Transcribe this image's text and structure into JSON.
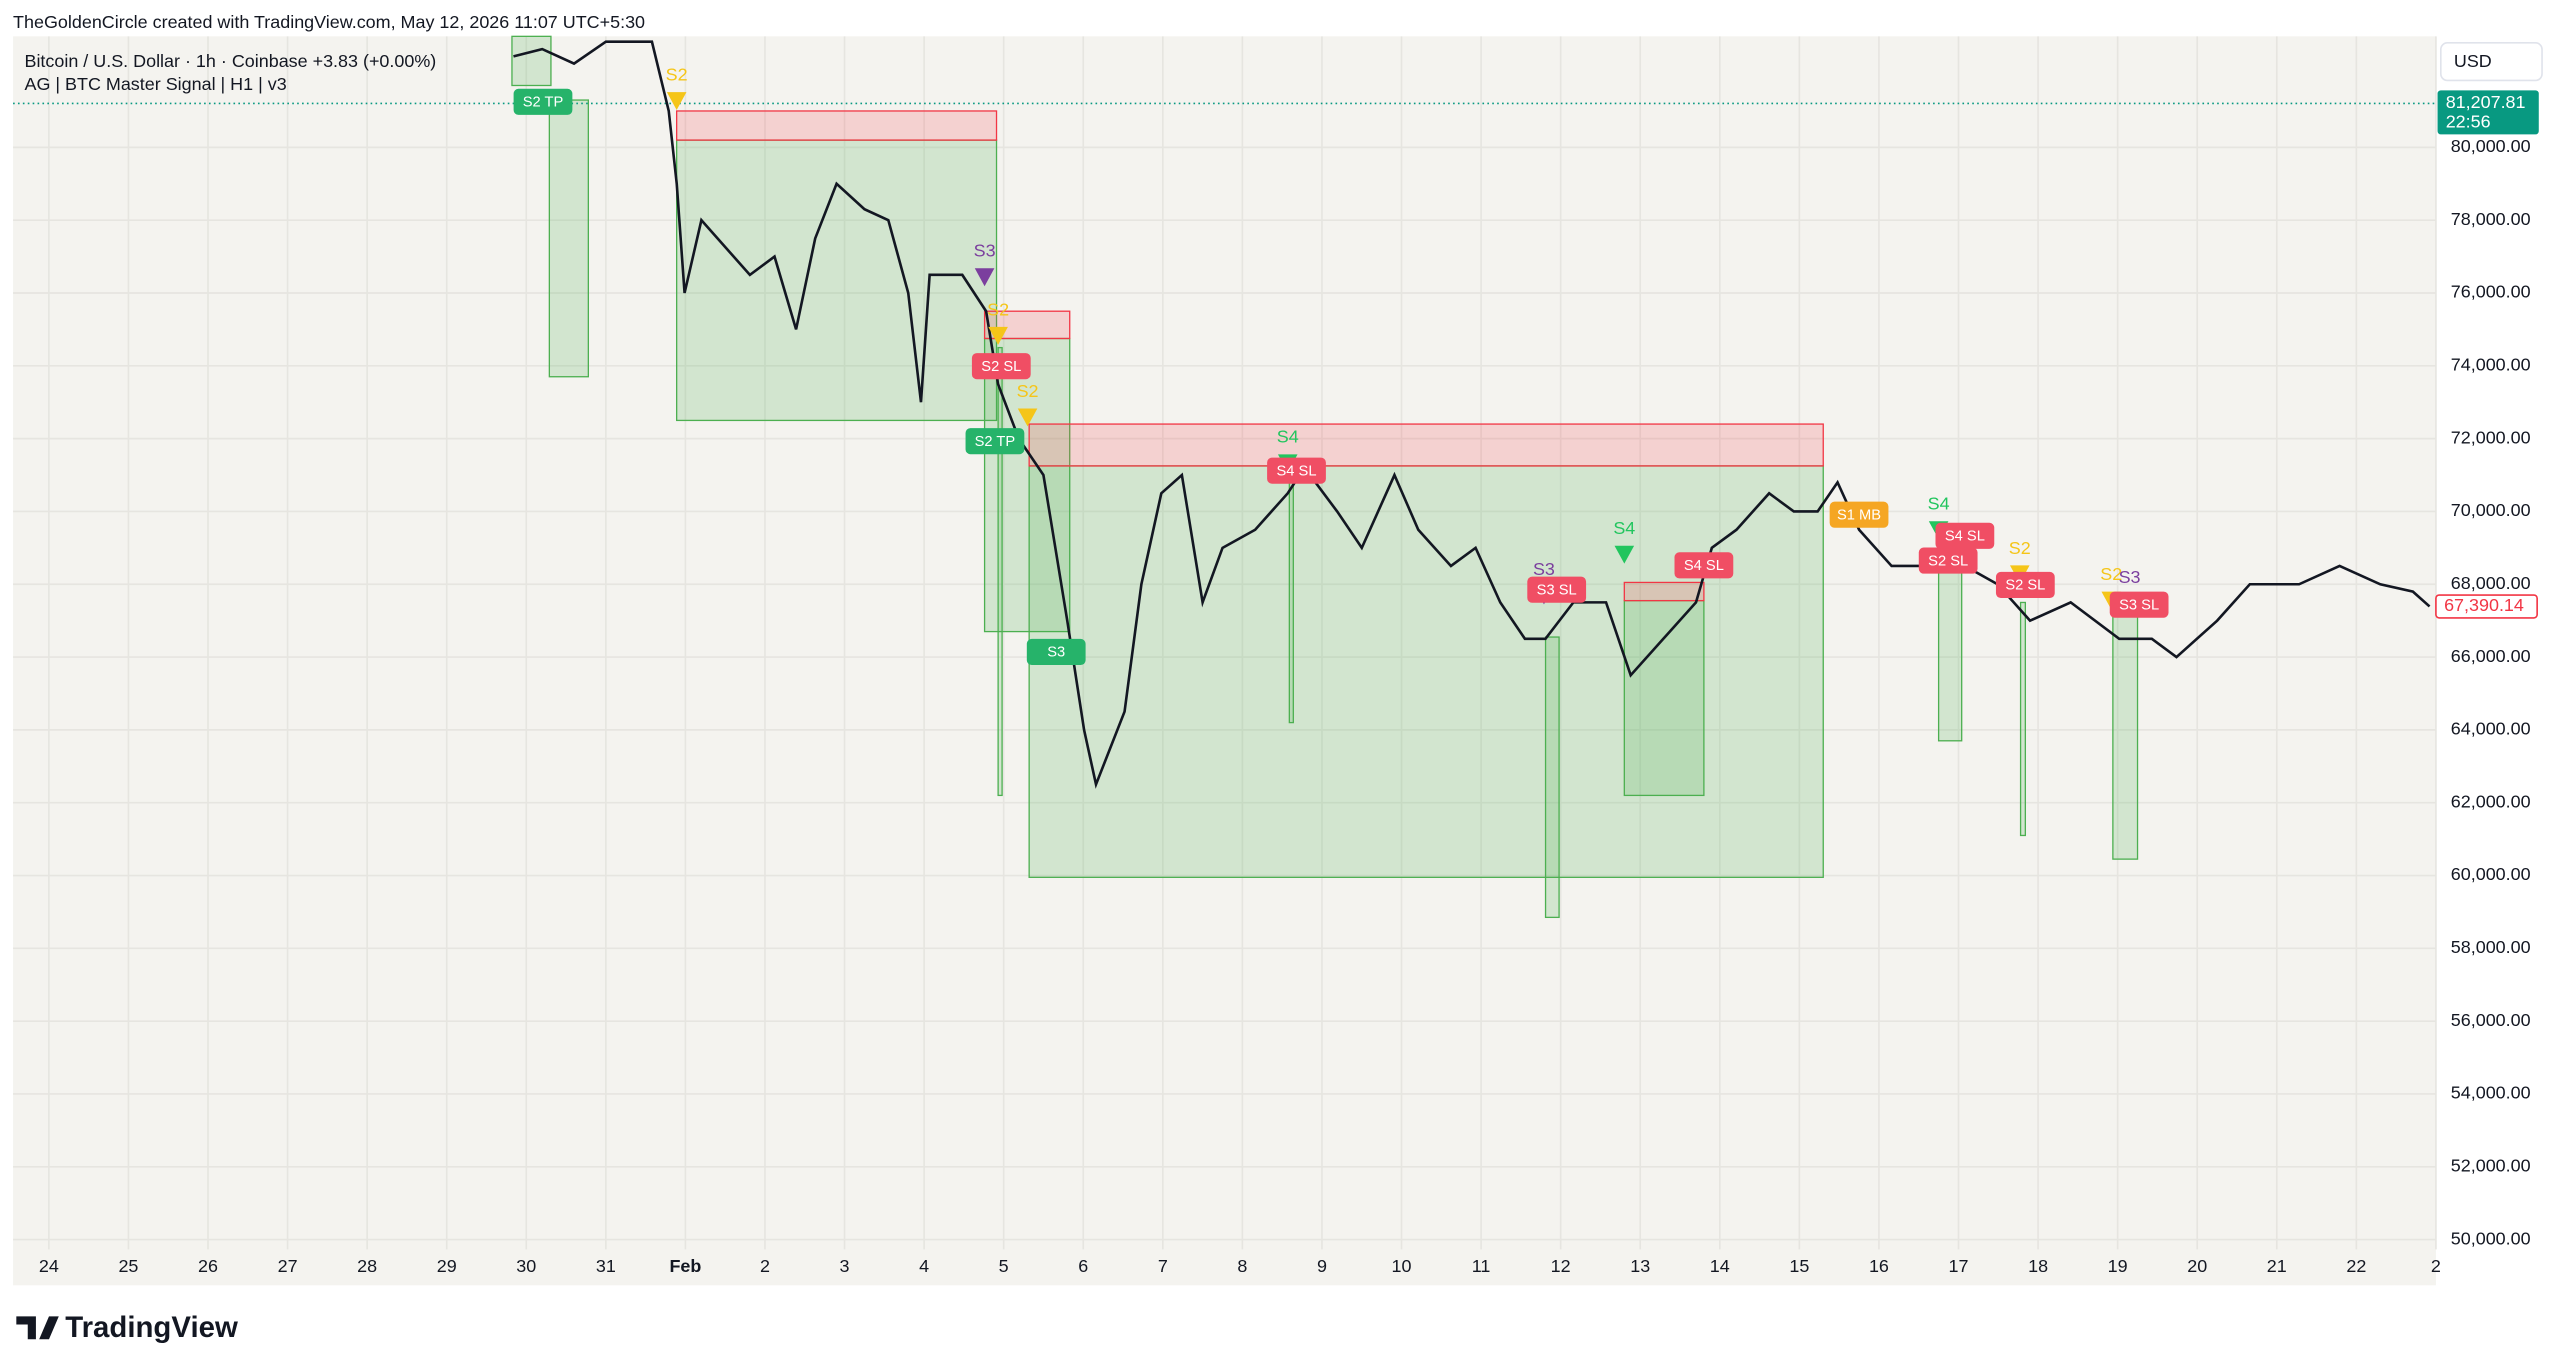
{
  "header": {
    "credit": "TheGoldenCircle created with TradingView.com, May 12, 2026 11:07 UTC+5:30",
    "symbol": "Bitcoin / U.S. Dollar · 1h · Coinbase  +3.83 (+0.00%)",
    "indicator": "AG | BTC Master Signal | H1 | v3",
    "currency": "USD"
  },
  "footer": {
    "logo": "TradingView"
  },
  "chart_data": {
    "type": "line",
    "x": [
      5.84,
      6.2,
      6.6,
      7.0,
      7.58,
      7.79,
      7.89,
      7.99,
      8.2,
      8.81,
      9.12,
      9.39,
      9.63,
      9.9,
      10.25,
      10.55,
      10.8,
      10.96,
      11.07,
      11.48,
      11.78,
      11.93,
      12.19,
      12.5,
      12.8,
      13.01,
      13.16,
      13.52,
      13.73,
      13.98,
      14.24,
      14.5,
      14.75,
      15.16,
      15.57,
      15.78,
      16.19,
      16.5,
      16.91,
      17.21,
      17.62,
      17.93,
      18.24,
      18.55,
      18.81,
      19.16,
      19.57,
      19.88,
      20.29,
      20.7,
      20.9,
      21.21,
      21.62,
      21.93,
      22.23,
      22.48,
      22.75,
      23.16,
      23.67,
      24.08,
      24.49,
      24.9,
      25.41,
      26.02,
      26.43,
      26.74,
      27.25,
      27.66,
      28.28,
      28.79,
      29.3,
      29.71,
      29.92
    ],
    "series": [
      {
        "name": "BTCUSD",
        "color": "#131722",
        "values": [
          82500,
          82700,
          82300,
          82900,
          82900,
          81000,
          79000,
          76000,
          78000,
          76500,
          77000,
          75000,
          77500,
          79000,
          78300,
          78000,
          76000,
          73000,
          76500,
          76500,
          75500,
          73500,
          72000,
          71000,
          67000,
          64000,
          62500,
          64500,
          68000,
          70500,
          71000,
          67500,
          69000,
          69500,
          70500,
          71200,
          70000,
          69000,
          71000,
          69500,
          68500,
          69000,
          67500,
          66500,
          66500,
          67500,
          67500,
          65500,
          66500,
          67500,
          69000,
          69500,
          70500,
          70000,
          70000,
          70800,
          69500,
          68500,
          68500,
          68500,
          68000,
          67000,
          67500,
          66500,
          66500,
          66000,
          67000,
          68000,
          68000,
          68500,
          68000,
          67800,
          67390.14
        ]
      }
    ],
    "xlim": [
      -0.45,
      30
    ],
    "ylim": [
      49730,
      83050
    ],
    "xticks": [
      {
        "value": 0,
        "label": "24"
      },
      {
        "value": 1,
        "label": "25"
      },
      {
        "value": 2,
        "label": "26"
      },
      {
        "value": 3,
        "label": "27"
      },
      {
        "value": 4,
        "label": "28"
      },
      {
        "value": 5,
        "label": "29"
      },
      {
        "value": 6,
        "label": "30"
      },
      {
        "value": 7,
        "label": "31"
      },
      {
        "value": 8,
        "label": "Feb"
      },
      {
        "value": 9,
        "label": "2"
      },
      {
        "value": 10,
        "label": "3"
      },
      {
        "value": 11,
        "label": "4"
      },
      {
        "value": 12,
        "label": "5"
      },
      {
        "value": 13,
        "label": "6"
      },
      {
        "value": 14,
        "label": "7"
      },
      {
        "value": 15,
        "label": "8"
      },
      {
        "value": 16,
        "label": "9"
      },
      {
        "value": 17,
        "label": "10"
      },
      {
        "value": 18,
        "label": "11"
      },
      {
        "value": 19,
        "label": "12"
      },
      {
        "value": 20,
        "label": "13"
      },
      {
        "value": 21,
        "label": "14"
      },
      {
        "value": 22,
        "label": "15"
      },
      {
        "value": 23,
        "label": "16"
      },
      {
        "value": 24,
        "label": "17"
      },
      {
        "value": 25,
        "label": "18"
      },
      {
        "value": 26,
        "label": "19"
      },
      {
        "value": 27,
        "label": "20"
      },
      {
        "value": 28,
        "label": "21"
      },
      {
        "value": 29,
        "label": "22"
      },
      {
        "value": 30,
        "label": "2"
      }
    ],
    "yticks": [
      {
        "value": 50000,
        "label": "50,000.00"
      },
      {
        "value": 52000,
        "label": "52,000.00"
      },
      {
        "value": 54000,
        "label": "54,000.00"
      },
      {
        "value": 56000,
        "label": "56,000.00"
      },
      {
        "value": 58000,
        "label": "58,000.00"
      },
      {
        "value": 60000,
        "label": "60,000.00"
      },
      {
        "value": 62000,
        "label": "62,000.00"
      },
      {
        "value": 64000,
        "label": "64,000.00"
      },
      {
        "value": 66000,
        "label": "66,000.00"
      },
      {
        "value": 68000,
        "label": "68,000.00"
      },
      {
        "value": 70000,
        "label": "70,000.00"
      },
      {
        "value": 72000,
        "label": "72,000.00"
      },
      {
        "value": 74000,
        "label": "74,000.00"
      },
      {
        "value": 76000,
        "label": "76,000.00"
      },
      {
        "value": 78000,
        "label": "78,000.00"
      },
      {
        "value": 80000,
        "label": "80,000.00"
      }
    ],
    "grid": true,
    "zones": [
      {
        "kind": "profit",
        "x": [
          5.82,
          6.31
        ],
        "y": [
          83050,
          81700
        ]
      },
      {
        "kind": "profit",
        "x": [
          6.29,
          6.78
        ],
        "y": [
          81300,
          73700
        ]
      },
      {
        "kind": "profit",
        "x": [
          7.89,
          11.91
        ],
        "y": [
          80200,
          72500
        ]
      },
      {
        "kind": "profit",
        "x": [
          11.76,
          12.83
        ],
        "y": [
          74750,
          66700
        ]
      },
      {
        "kind": "profit",
        "x": [
          12.32,
          22.3
        ],
        "y": [
          71250,
          59950
        ]
      },
      {
        "kind": "profit",
        "x": [
          19.8,
          20.8
        ],
        "y": [
          67550,
          62200
        ]
      },
      {
        "kind": "profit",
        "x": [
          18.81,
          18.98
        ],
        "y": [
          66550,
          58850
        ]
      },
      {
        "kind": "profit",
        "x": [
          23.75,
          24.04
        ],
        "y": [
          69250,
          63700
        ]
      },
      {
        "kind": "profit",
        "x": [
          25.94,
          26.25
        ],
        "y": [
          67250,
          60450
        ]
      },
      {
        "kind": "profit",
        "x": [
          11.93,
          11.98
        ],
        "y": [
          74500,
          62200
        ]
      },
      {
        "kind": "profit",
        "x": [
          15.59,
          15.64
        ],
        "y": [
          71000,
          64200
        ]
      },
      {
        "kind": "profit",
        "x": [
          24.78,
          24.84
        ],
        "y": [
          67500,
          61100
        ]
      },
      {
        "kind": "risk",
        "x": [
          7.89,
          11.91
        ],
        "y": [
          81000,
          80200
        ]
      },
      {
        "kind": "risk",
        "x": [
          11.76,
          12.83
        ],
        "y": [
          75500,
          74750
        ]
      },
      {
        "kind": "risk",
        "x": [
          12.32,
          22.3
        ],
        "y": [
          72400,
          71250
        ]
      },
      {
        "kind": "risk",
        "x": [
          19.8,
          20.8
        ],
        "y": [
          68050,
          67550
        ]
      }
    ],
    "zone_colors": {
      "profit": "#4caf50",
      "risk": "#f23645"
    },
    "signals": [
      {
        "label": "S2",
        "x": 7.89,
        "y": 81250,
        "color": "#f5c518"
      },
      {
        "label": "S3",
        "x": 11.76,
        "y": 76410,
        "color": "#7b3f9e"
      },
      {
        "label": "S2",
        "x": 11.93,
        "y": 74800,
        "color": "#f5c518"
      },
      {
        "label": "S2",
        "x": 12.3,
        "y": 72560,
        "color": "#f5c518"
      },
      {
        "label": "S4",
        "x": 15.57,
        "y": 71300,
        "color": "#22c55e"
      },
      {
        "label": "S3",
        "x": 18.79,
        "y": 67670,
        "color": "#7b3f9e"
      },
      {
        "label": "S4",
        "x": 19.8,
        "y": 68790,
        "color": "#22c55e"
      },
      {
        "label": "S4",
        "x": 23.75,
        "y": 69460,
        "color": "#22c55e"
      },
      {
        "label": "S2",
        "x": 24.77,
        "y": 68250,
        "color": "#f5c518"
      },
      {
        "label": "S2",
        "x": 25.92,
        "y": 67530,
        "color": "#f5c518"
      },
      {
        "label": "S3",
        "x": 26.15,
        "y": 67440,
        "color": "#7b3f9e"
      }
    ],
    "badges": [
      {
        "label": "S2 TP",
        "x": 6.21,
        "y": 81250,
        "color": "#26b36a"
      },
      {
        "label": "S2 SL",
        "x": 11.97,
        "y": 73990,
        "color": "#f04e64"
      },
      {
        "label": "S2 TP",
        "x": 11.89,
        "y": 71930,
        "color": "#26b36a"
      },
      {
        "label": "S3",
        "x": 12.66,
        "y": 66140,
        "color": "#26b36a"
      },
      {
        "label": "S4 SL",
        "x": 15.68,
        "y": 71120,
        "color": "#f04e64"
      },
      {
        "label": "S3 SL",
        "x": 18.95,
        "y": 67850,
        "color": "#f04e64"
      },
      {
        "label": "S4 SL",
        "x": 20.8,
        "y": 68520,
        "color": "#f04e64"
      },
      {
        "label": "S1 MB",
        "x": 22.75,
        "y": 69910,
        "color": "#f5a623"
      },
      {
        "label": "S2 SL",
        "x": 23.87,
        "y": 68650,
        "color": "#f04e64"
      },
      {
        "label": "S4 SL",
        "x": 24.08,
        "y": 69330,
        "color": "#f04e64"
      },
      {
        "label": "S2 SL",
        "x": 24.84,
        "y": 67980,
        "color": "#f04e64"
      },
      {
        "label": "S3 SL",
        "x": 26.27,
        "y": 67440,
        "color": "#f04e64"
      }
    ],
    "last_price": {
      "value": 81207.81,
      "label": "81,207.81",
      "time": "22:56",
      "color": "#089981"
    },
    "current_price": {
      "value": 67390.14,
      "label": "67,390.14",
      "color": "#f23645"
    }
  }
}
